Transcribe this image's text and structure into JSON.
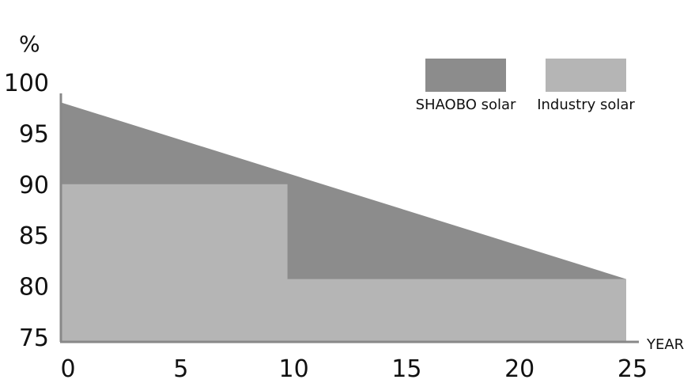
{
  "chart_data": {
    "type": "area",
    "y_unit": "%",
    "xlabel": "YEAR",
    "x_ticks": [
      0,
      5,
      10,
      15,
      20,
      25
    ],
    "y_ticks": [
      75,
      80,
      85,
      90,
      95,
      100
    ],
    "xlim": [
      0,
      25
    ],
    "ylim": [
      75,
      100
    ],
    "grid": false,
    "legend_position": "top-right",
    "series": [
      {
        "name": "SHAOBO solar",
        "color": "#8c8c8c",
        "points": [
          [
            0,
            98
          ],
          [
            25,
            80.7
          ]
        ]
      },
      {
        "name": "Industry solar",
        "color": "#b5b5b5",
        "points": [
          [
            0,
            90
          ],
          [
            10,
            90
          ],
          [
            10,
            80.7
          ],
          [
            25,
            80.7
          ]
        ]
      }
    ]
  }
}
